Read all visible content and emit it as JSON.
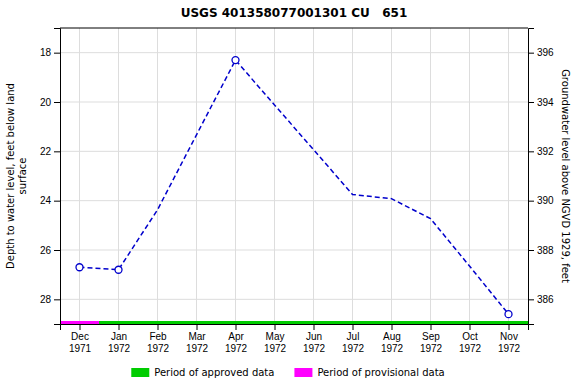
{
  "chart_data": {
    "type": "line",
    "title": "USGS 401358077001301 CU   651",
    "categories": [
      "Dec\n1971",
      "Jan\n1972",
      "Feb\n1972",
      "Mar\n1972",
      "Apr\n1972",
      "May\n1972",
      "Jun\n1972",
      "Jul\n1972",
      "Aug\n1972",
      "Sep\n1972",
      "Oct\n1972",
      "Nov\n1972"
    ],
    "y_label": "Depth to water level, feet below land\nsurface",
    "y2_label": "Groundwater level above NGVD 1929, feet",
    "ylim": [
      29,
      17
    ],
    "yticks": [
      18,
      20,
      22,
      24,
      26,
      28
    ],
    "y2lim": [
      385,
      397
    ],
    "y2ticks": [
      396,
      394,
      392,
      390,
      388,
      386
    ],
    "grid": true,
    "legend": "bottom",
    "series": [
      {
        "type": "line",
        "color": "#0000cc",
        "line_style": "dashed",
        "values": [
          26.7,
          26.8,
          24.37,
          21.33,
          18.3,
          20.12,
          21.93,
          23.75,
          23.92,
          24.73,
          26.65,
          28.6
        ]
      },
      {
        "type": "scatter",
        "color": "#0000cc",
        "marker": "circle",
        "values": [
          26.7,
          26.8,
          null,
          null,
          18.3,
          null,
          null,
          null,
          null,
          null,
          null,
          28.6
        ]
      },
      {
        "type": "strip",
        "name": "Period of approved data",
        "color": "#00cc00",
        "values": [
          29,
          29,
          29,
          29,
          29,
          29,
          29,
          29,
          29,
          29,
          29,
          29
        ]
      },
      {
        "type": "strip",
        "name": "Period of provisional data",
        "color": "#ff00ff",
        "values": [
          29,
          null,
          null,
          null,
          null,
          null,
          null,
          null,
          null,
          null,
          null,
          null
        ]
      }
    ]
  }
}
